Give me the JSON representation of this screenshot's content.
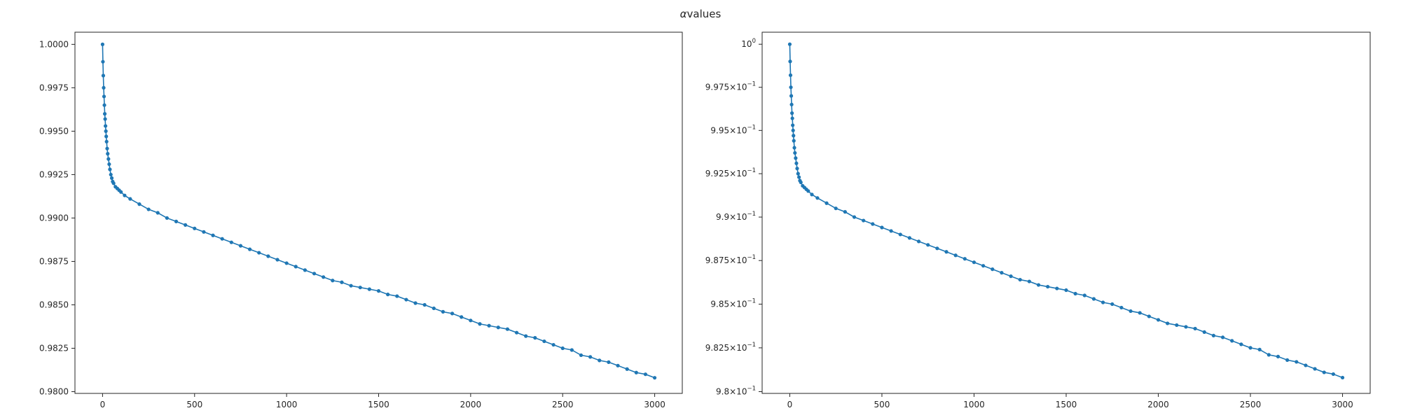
{
  "figure": {
    "title_symbol": "α",
    "title_text": "values"
  },
  "colors": {
    "series": "#1f77b4",
    "axes": "#262626",
    "background": "#ffffff"
  },
  "chart_data": [
    {
      "type": "line",
      "marker": "dot",
      "y_scale": "linear",
      "xlim": [
        -150,
        3150
      ],
      "ylim": [
        0.9799,
        1.0007
      ],
      "x_ticks": [
        0,
        500,
        1000,
        1500,
        2000,
        2500,
        3000
      ],
      "x_tick_labels": [
        "0",
        "500",
        "1000",
        "1500",
        "2000",
        "2500",
        "3000"
      ],
      "y_ticks": [
        0.98,
        0.9825,
        0.985,
        0.9875,
        0.99,
        0.9925,
        0.995,
        0.9975,
        1.0
      ],
      "y_tick_labels": [
        "0.9800",
        "0.9825",
        "0.9850",
        "0.9875",
        "0.9900",
        "0.9925",
        "0.9950",
        "0.9975",
        "1.0000"
      ],
      "grid": false,
      "series": [
        {
          "x": [
            0,
            2,
            4,
            6,
            8,
            10,
            12,
            14,
            16,
            18,
            20,
            22,
            25,
            28,
            32,
            36,
            40,
            45,
            50,
            55,
            60,
            70,
            80,
            90,
            100,
            120,
            150,
            200,
            250,
            300,
            350,
            400,
            450,
            500,
            550,
            600,
            650,
            700,
            750,
            800,
            850,
            900,
            950,
            1000,
            1050,
            1100,
            1150,
            1200,
            1250,
            1300,
            1350,
            1400,
            1450,
            1500,
            1550,
            1600,
            1650,
            1700,
            1750,
            1800,
            1850,
            1900,
            1950,
            2000,
            2050,
            2100,
            2150,
            2200,
            2250,
            2300,
            2350,
            2400,
            2450,
            2500,
            2550,
            2600,
            2650,
            2700,
            2750,
            2800,
            2850,
            2900,
            2950,
            3000
          ],
          "y": [
            1.0,
            0.999,
            0.9982,
            0.9975,
            0.997,
            0.9965,
            0.996,
            0.9957,
            0.9953,
            0.995,
            0.9947,
            0.9944,
            0.994,
            0.9937,
            0.9934,
            0.9931,
            0.9928,
            0.9925,
            0.9923,
            0.9921,
            0.992,
            0.9918,
            0.9917,
            0.9916,
            0.9915,
            0.9913,
            0.9911,
            0.9908,
            0.9905,
            0.9903,
            0.99,
            0.9898,
            0.9896,
            0.9894,
            0.9892,
            0.989,
            0.9888,
            0.9886,
            0.9884,
            0.9882,
            0.988,
            0.9878,
            0.9876,
            0.9874,
            0.9872,
            0.987,
            0.9868,
            0.9866,
            0.9864,
            0.9863,
            0.9861,
            0.986,
            0.9859,
            0.9858,
            0.9856,
            0.9855,
            0.9853,
            0.9851,
            0.985,
            0.9848,
            0.9846,
            0.9845,
            0.9843,
            0.9841,
            0.9839,
            0.9838,
            0.9837,
            0.9836,
            0.9834,
            0.9832,
            0.9831,
            0.9829,
            0.9827,
            0.9825,
            0.9824,
            0.9821,
            0.982,
            0.9818,
            0.9817,
            0.9815,
            0.9813,
            0.9811,
            0.981,
            0.9808
          ]
        }
      ]
    },
    {
      "type": "line",
      "marker": "dot",
      "y_scale": "log",
      "xlim": [
        -150,
        3150
      ],
      "ylim": [
        0.9799,
        1.0007
      ],
      "x_ticks": [
        0,
        500,
        1000,
        1500,
        2000,
        2500,
        3000
      ],
      "x_tick_labels": [
        "0",
        "500",
        "1000",
        "1500",
        "2000",
        "2500",
        "3000"
      ],
      "y_ticks": [
        0.98,
        0.9825,
        0.985,
        0.9875,
        0.99,
        0.9925,
        0.995,
        0.9975,
        1.0
      ],
      "y_tick_labels": [
        {
          "mant": "9.8",
          "exp": "−1"
        },
        {
          "mant": "9.825",
          "exp": "−1"
        },
        {
          "mant": "9.85",
          "exp": "−1"
        },
        {
          "mant": "9.875",
          "exp": "−1"
        },
        {
          "mant": "9.9",
          "exp": "−1"
        },
        {
          "mant": "9.925",
          "exp": "−1"
        },
        {
          "mant": "9.95",
          "exp": "−1"
        },
        {
          "mant": "9.975",
          "exp": "−1"
        },
        {
          "mant": "",
          "exp": "0"
        }
      ],
      "grid": false,
      "series": [
        {
          "x": [
            0,
            2,
            4,
            6,
            8,
            10,
            12,
            14,
            16,
            18,
            20,
            22,
            25,
            28,
            32,
            36,
            40,
            45,
            50,
            55,
            60,
            70,
            80,
            90,
            100,
            120,
            150,
            200,
            250,
            300,
            350,
            400,
            450,
            500,
            550,
            600,
            650,
            700,
            750,
            800,
            850,
            900,
            950,
            1000,
            1050,
            1100,
            1150,
            1200,
            1250,
            1300,
            1350,
            1400,
            1450,
            1500,
            1550,
            1600,
            1650,
            1700,
            1750,
            1800,
            1850,
            1900,
            1950,
            2000,
            2050,
            2100,
            2150,
            2200,
            2250,
            2300,
            2350,
            2400,
            2450,
            2500,
            2550,
            2600,
            2650,
            2700,
            2750,
            2800,
            2850,
            2900,
            2950,
            3000
          ],
          "y": [
            1.0,
            0.999,
            0.9982,
            0.9975,
            0.997,
            0.9965,
            0.996,
            0.9957,
            0.9953,
            0.995,
            0.9947,
            0.9944,
            0.994,
            0.9937,
            0.9934,
            0.9931,
            0.9928,
            0.9925,
            0.9923,
            0.9921,
            0.992,
            0.9918,
            0.9917,
            0.9916,
            0.9915,
            0.9913,
            0.9911,
            0.9908,
            0.9905,
            0.9903,
            0.99,
            0.9898,
            0.9896,
            0.9894,
            0.9892,
            0.989,
            0.9888,
            0.9886,
            0.9884,
            0.9882,
            0.988,
            0.9878,
            0.9876,
            0.9874,
            0.9872,
            0.987,
            0.9868,
            0.9866,
            0.9864,
            0.9863,
            0.9861,
            0.986,
            0.9859,
            0.9858,
            0.9856,
            0.9855,
            0.9853,
            0.9851,
            0.985,
            0.9848,
            0.9846,
            0.9845,
            0.9843,
            0.9841,
            0.9839,
            0.9838,
            0.9837,
            0.9836,
            0.9834,
            0.9832,
            0.9831,
            0.9829,
            0.9827,
            0.9825,
            0.9824,
            0.9821,
            0.982,
            0.9818,
            0.9817,
            0.9815,
            0.9813,
            0.9811,
            0.981,
            0.9808
          ]
        }
      ]
    }
  ]
}
